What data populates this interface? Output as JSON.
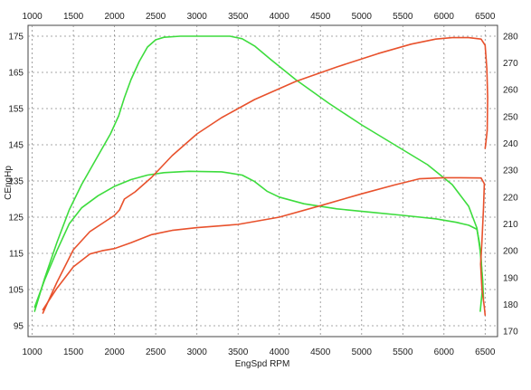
{
  "chart_data": {
    "type": "line",
    "xlabel": "EngSpd RPM",
    "ylabel": "CEngHp",
    "xlim": [
      950,
      6650
    ],
    "ylim": [
      92,
      178
    ],
    "y2lim": [
      168,
      284
    ],
    "x_ticks": [
      1000,
      1500,
      2000,
      2500,
      3000,
      3500,
      4000,
      4500,
      5000,
      5500,
      6000,
      6500
    ],
    "y_ticks": [
      95,
      105,
      115,
      125,
      135,
      145,
      155,
      165,
      175
    ],
    "y2_ticks": [
      170,
      180,
      190,
      200,
      210,
      220,
      230,
      240,
      250,
      260,
      270,
      280
    ],
    "grid": true,
    "colors": {
      "green": "#3ddc3d",
      "red": "#e8512c"
    },
    "series": [
      {
        "axis": "left",
        "color": "#3ddc3d",
        "points": [
          [
            1030,
            99
          ],
          [
            1150,
            108
          ],
          [
            1300,
            118
          ],
          [
            1450,
            127
          ],
          [
            1600,
            134
          ],
          [
            1800,
            142
          ],
          [
            1950,
            148
          ],
          [
            2050,
            153
          ],
          [
            2120,
            158
          ],
          [
            2200,
            163
          ],
          [
            2300,
            168
          ],
          [
            2400,
            172
          ],
          [
            2500,
            174
          ],
          [
            2600,
            174.7
          ],
          [
            2800,
            175
          ],
          [
            3400,
            175
          ],
          [
            3550,
            174.3
          ],
          [
            3700,
            172.3
          ],
          [
            3900,
            168.5
          ],
          [
            4200,
            163
          ],
          [
            4600,
            156.5
          ],
          [
            5000,
            150.5
          ],
          [
            5400,
            145
          ],
          [
            5800,
            139.5
          ],
          [
            6100,
            134
          ],
          [
            6300,
            128
          ],
          [
            6400,
            122
          ],
          [
            6450,
            114
          ],
          [
            6470,
            106
          ],
          [
            6440,
            99
          ]
        ]
      },
      {
        "axis": "right",
        "color": "#3ddc3d",
        "points": [
          [
            1030,
            179
          ],
          [
            1150,
            189
          ],
          [
            1300,
            200
          ],
          [
            1450,
            210
          ],
          [
            1600,
            216
          ],
          [
            1800,
            220.5
          ],
          [
            2000,
            224
          ],
          [
            2200,
            226.5
          ],
          [
            2400,
            228.2
          ],
          [
            2600,
            229.1
          ],
          [
            2900,
            229.6
          ],
          [
            3300,
            229.4
          ],
          [
            3550,
            228.2
          ],
          [
            3700,
            225.8
          ],
          [
            3850,
            222.2
          ],
          [
            4000,
            220
          ],
          [
            4300,
            217.5
          ],
          [
            4700,
            215.6
          ],
          [
            5100,
            214.4
          ],
          [
            5500,
            213.2
          ],
          [
            5900,
            211.9
          ],
          [
            6150,
            210.6
          ],
          [
            6300,
            209.5
          ],
          [
            6400,
            208
          ],
          [
            6430,
            203
          ],
          [
            6450,
            196
          ],
          [
            6470,
            189
          ],
          [
            6480,
            182
          ]
        ]
      },
      {
        "axis": "left",
        "color": "#e8512c",
        "points": [
          [
            1130,
            98.5
          ],
          [
            1300,
            107
          ],
          [
            1500,
            116
          ],
          [
            1700,
            121
          ],
          [
            1900,
            124
          ],
          [
            2000,
            125.5
          ],
          [
            2060,
            127
          ],
          [
            2120,
            130
          ],
          [
            2250,
            132
          ],
          [
            2450,
            136
          ],
          [
            2700,
            142
          ],
          [
            3000,
            148
          ],
          [
            3300,
            152.5
          ],
          [
            3700,
            157.5
          ],
          [
            4200,
            162.5
          ],
          [
            4700,
            166.5
          ],
          [
            5200,
            170.2
          ],
          [
            5600,
            172.8
          ],
          [
            5900,
            174.2
          ],
          [
            6100,
            174.6
          ],
          [
            6300,
            174.6
          ],
          [
            6450,
            174.2
          ],
          [
            6500,
            172.5
          ],
          [
            6520,
            166
          ],
          [
            6530,
            158
          ],
          [
            6525,
            149
          ],
          [
            6510,
            146
          ],
          [
            6500,
            144
          ]
        ]
      },
      {
        "axis": "right",
        "color": "#e8512c",
        "points": [
          [
            1130,
            178
          ],
          [
            1300,
            186
          ],
          [
            1500,
            194
          ],
          [
            1700,
            198.8
          ],
          [
            1850,
            200
          ],
          [
            2000,
            200.8
          ],
          [
            2200,
            203
          ],
          [
            2450,
            206
          ],
          [
            2700,
            207.6
          ],
          [
            3000,
            208.6
          ],
          [
            3500,
            209.8
          ],
          [
            4000,
            212.5
          ],
          [
            4500,
            216.8
          ],
          [
            5000,
            221.2
          ],
          [
            5400,
            224.5
          ],
          [
            5700,
            226.8
          ],
          [
            6000,
            227.2
          ],
          [
            6200,
            227.2
          ],
          [
            6450,
            227.1
          ],
          [
            6490,
            225
          ],
          [
            6480,
            216
          ],
          [
            6460,
            203
          ],
          [
            6445,
            195
          ],
          [
            6460,
            186
          ],
          [
            6490,
            179
          ],
          [
            6500,
            176
          ]
        ]
      }
    ]
  }
}
